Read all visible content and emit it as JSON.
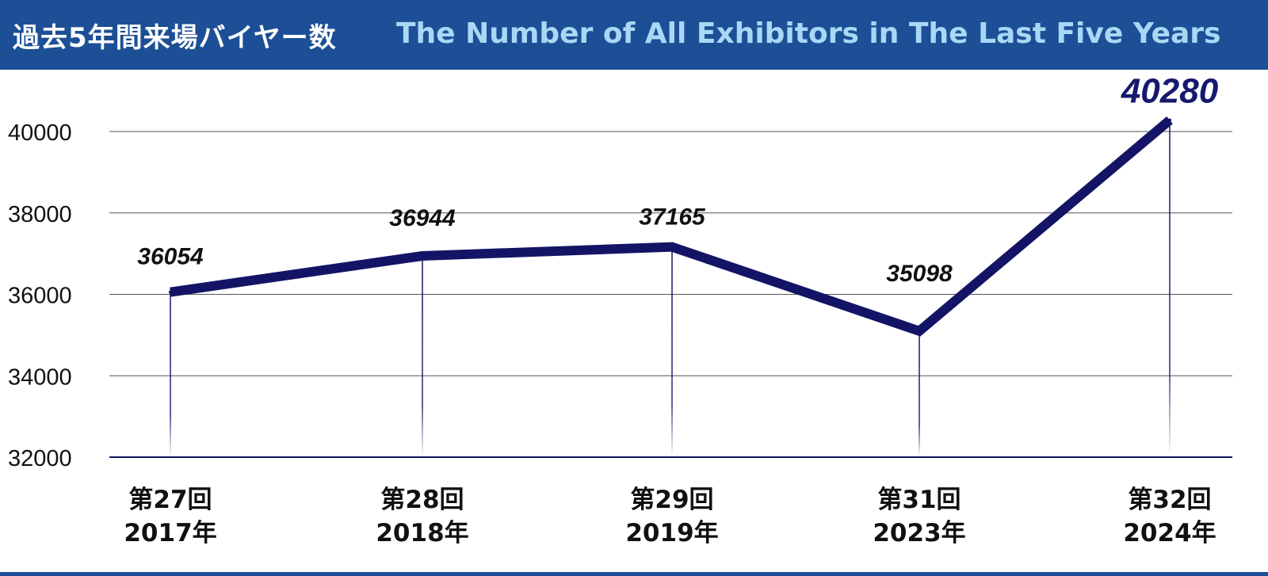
{
  "header": {
    "title_ja": "過去5年間来場バイヤー数",
    "title_en": "The Number of All Exhibitors in The Last Five Years"
  },
  "colors": {
    "header_bg": "#1c4f96",
    "title_en": "#a9d8f5",
    "series_line": "#141466",
    "grid": "#555555"
  },
  "chart_data": {
    "type": "line",
    "categories": [
      [
        "第27回",
        "2017年"
      ],
      [
        "第28回",
        "2018年"
      ],
      [
        "第29回",
        "2019年"
      ],
      [
        "第31回",
        "2023年"
      ],
      [
        "第32回",
        "2024年"
      ]
    ],
    "series": [
      {
        "values": [
          36054,
          36944,
          37165,
          35098,
          40280
        ]
      }
    ],
    "data_labels": [
      "36054",
      "36944",
      "37165",
      "35098",
      "40280"
    ],
    "highlight_index": 4,
    "yticks": [
      32000,
      34000,
      36000,
      38000,
      40000
    ],
    "ylim": [
      32000,
      40000
    ],
    "grid": true,
    "legend": "none",
    "xlabel": "",
    "ylabel": ""
  }
}
